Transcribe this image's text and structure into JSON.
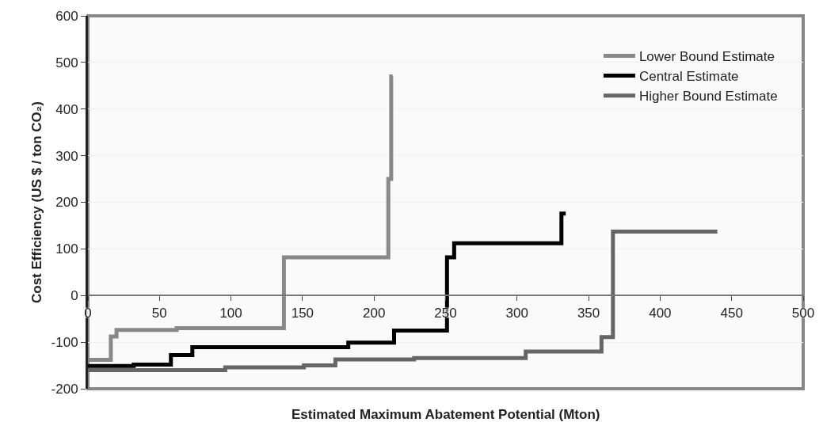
{
  "chart_data": {
    "type": "step",
    "xlabel": "Estimated Maximum Abatement Potential (Mton)",
    "ylabel": "Cost Efficiency (US $ / ton CO₂)",
    "series": [
      {
        "name": "Lower Bound Estimate",
        "color": "#888888",
        "x": [
          0,
          16,
          20,
          62,
          137,
          210,
          212,
          213
        ],
        "values": [
          -138,
          -88,
          -74,
          -70,
          82,
          250,
          470,
          470
        ]
      },
      {
        "name": "Central Estimate",
        "color": "#000000",
        "x": [
          0,
          32,
          58,
          73,
          182,
          214,
          251,
          256,
          331,
          334
        ],
        "values": [
          -151,
          -148,
          -128,
          -111,
          -101,
          -75,
          82,
          112,
          176,
          176
        ]
      },
      {
        "name": "Higher Bound Estimate",
        "color": "#666666",
        "x": [
          0,
          96,
          151,
          173,
          228,
          306,
          359,
          367,
          440
        ],
        "values": [
          -160,
          -154,
          -150,
          -137,
          -134,
          -120,
          -89,
          137,
          137
        ]
      }
    ],
    "xlim": [
      0,
      500
    ],
    "xticks": [
      0,
      50,
      100,
      150,
      200,
      250,
      300,
      350,
      400,
      450,
      500
    ],
    "ylim": [
      -200,
      600
    ],
    "yticks": [
      -200,
      -100,
      0,
      100,
      200,
      300,
      400,
      500,
      600
    ],
    "grid": "y",
    "legend": "top right",
    "marker": "none",
    "line_style": "solid"
  }
}
